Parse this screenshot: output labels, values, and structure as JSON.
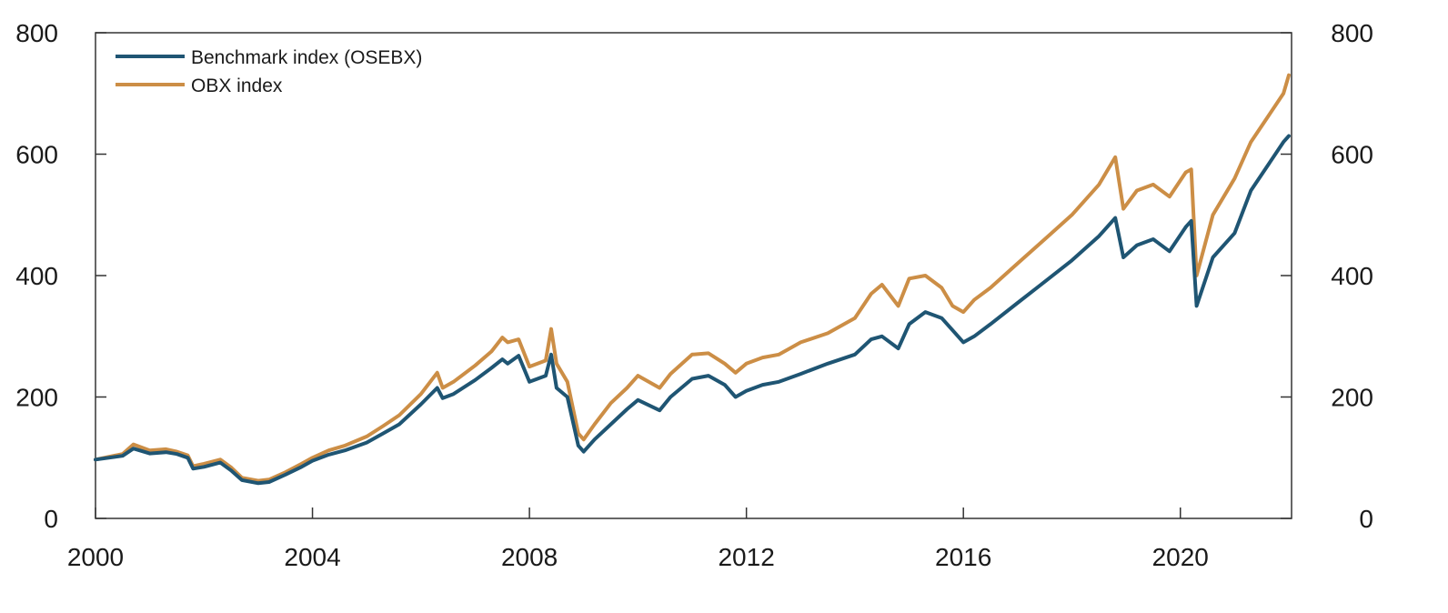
{
  "chart_data": {
    "type": "line",
    "title": "",
    "xlabel": "",
    "ylabel": "",
    "x_ticks": [
      "2000",
      "2004",
      "2008",
      "2012",
      "2016",
      "2020"
    ],
    "y_ticks": [
      "0",
      "200",
      "400",
      "600",
      "800"
    ],
    "y2_ticks": [
      "0",
      "200",
      "400",
      "600",
      "800"
    ],
    "xlim": [
      2000,
      2022.05
    ],
    "ylim": [
      0,
      800
    ],
    "y2lim": [
      0,
      800
    ],
    "grid": false,
    "legend_placement": "top-left",
    "series": [
      {
        "name": "Benchmark index (OSEBX)",
        "color": "#1f5573",
        "x": [
          2000.0,
          2000.5,
          2000.7,
          2001.0,
          2001.3,
          2001.5,
          2001.7,
          2001.8,
          2002.0,
          2002.3,
          2002.5,
          2002.7,
          2003.0,
          2003.2,
          2003.5,
          2003.8,
          2004.0,
          2004.3,
          2004.6,
          2005.0,
          2005.3,
          2005.6,
          2006.0,
          2006.3,
          2006.4,
          2006.6,
          2007.0,
          2007.3,
          2007.5,
          2007.6,
          2007.8,
          2008.0,
          2008.3,
          2008.4,
          2008.5,
          2008.7,
          2008.9,
          2009.0,
          2009.2,
          2009.5,
          2009.8,
          2010.0,
          2010.4,
          2010.6,
          2011.0,
          2011.3,
          2011.6,
          2011.8,
          2012.0,
          2012.3,
          2012.6,
          2013.0,
          2013.5,
          2014.0,
          2014.3,
          2014.5,
          2014.8,
          2015.0,
          2015.3,
          2015.6,
          2015.8,
          2016.0,
          2016.2,
          2016.5,
          2017.0,
          2017.5,
          2018.0,
          2018.5,
          2018.8,
          2018.95,
          2019.2,
          2019.5,
          2019.8,
          2020.1,
          2020.2,
          2020.3,
          2020.6,
          2021.0,
          2021.3,
          2021.6,
          2021.9,
          2022.0
        ],
        "values": [
          97,
          103,
          115,
          107,
          109,
          106,
          100,
          82,
          85,
          92,
          79,
          63,
          58,
          60,
          72,
          85,
          95,
          105,
          112,
          125,
          140,
          155,
          188,
          215,
          198,
          205,
          228,
          248,
          262,
          255,
          268,
          225,
          235,
          270,
          215,
          200,
          120,
          110,
          130,
          155,
          180,
          195,
          178,
          200,
          230,
          235,
          220,
          200,
          210,
          220,
          225,
          238,
          255,
          270,
          295,
          300,
          280,
          320,
          340,
          330,
          310,
          290,
          300,
          320,
          355,
          390,
          425,
          465,
          495,
          430,
          450,
          460,
          440,
          480,
          490,
          350,
          430,
          470,
          540,
          580,
          620,
          630
        ]
      },
      {
        "name": "OBX index",
        "color": "#cc8e46",
        "x": [
          2000.0,
          2000.5,
          2000.7,
          2001.0,
          2001.3,
          2001.5,
          2001.7,
          2001.8,
          2002.0,
          2002.3,
          2002.5,
          2002.7,
          2003.0,
          2003.2,
          2003.5,
          2003.8,
          2004.0,
          2004.3,
          2004.6,
          2005.0,
          2005.3,
          2005.6,
          2006.0,
          2006.3,
          2006.4,
          2006.6,
          2007.0,
          2007.3,
          2007.5,
          2007.6,
          2007.8,
          2008.0,
          2008.3,
          2008.4,
          2008.5,
          2008.7,
          2008.9,
          2009.0,
          2009.2,
          2009.5,
          2009.8,
          2010.0,
          2010.4,
          2010.6,
          2011.0,
          2011.3,
          2011.6,
          2011.8,
          2012.0,
          2012.3,
          2012.6,
          2013.0,
          2013.5,
          2014.0,
          2014.3,
          2014.5,
          2014.8,
          2015.0,
          2015.3,
          2015.6,
          2015.8,
          2016.0,
          2016.2,
          2016.5,
          2017.0,
          2017.5,
          2018.0,
          2018.5,
          2018.8,
          2018.95,
          2019.2,
          2019.5,
          2019.8,
          2020.1,
          2020.2,
          2020.3,
          2020.6,
          2021.0,
          2021.3,
          2021.6,
          2021.9,
          2022.0
        ],
        "values": [
          97,
          106,
          122,
          112,
          114,
          110,
          104,
          86,
          90,
          97,
          84,
          67,
          62,
          64,
          76,
          90,
          100,
          112,
          120,
          135,
          152,
          170,
          205,
          240,
          215,
          225,
          252,
          275,
          298,
          290,
          295,
          250,
          260,
          312,
          255,
          225,
          140,
          130,
          155,
          190,
          215,
          235,
          215,
          238,
          270,
          272,
          255,
          240,
          255,
          265,
          270,
          290,
          305,
          330,
          370,
          385,
          350,
          395,
          400,
          380,
          350,
          340,
          360,
          380,
          420,
          460,
          500,
          550,
          595,
          510,
          540,
          550,
          530,
          570,
          575,
          400,
          500,
          560,
          620,
          660,
          700,
          730
        ]
      }
    ]
  },
  "legend": {
    "items": [
      {
        "label": "Benchmark index (OSEBX)",
        "color": "#1f5573"
      },
      {
        "label": "OBX index",
        "color": "#cc8e46"
      }
    ]
  }
}
